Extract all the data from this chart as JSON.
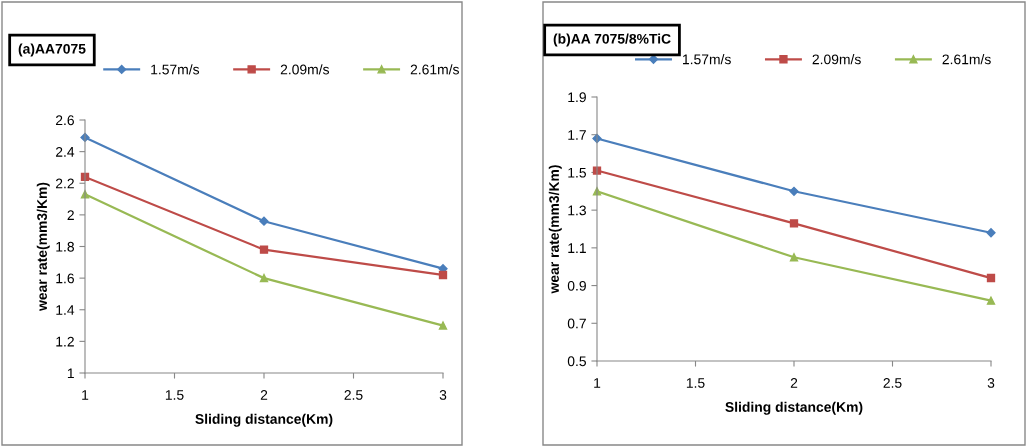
{
  "chart_data": [
    {
      "type": "line",
      "title": "(a)AA7075",
      "xlabel": "Sliding distance(Km)",
      "ylabel": "wear rate(mm3/Km)",
      "x": [
        1,
        2,
        3
      ],
      "series": [
        {
          "name": "1.57m/s",
          "color": "#4a7ebb",
          "marker": "diamond",
          "values": [
            2.49,
            1.96,
            1.66
          ]
        },
        {
          "name": "2.09m/s",
          "color": "#be4b48",
          "marker": "square",
          "values": [
            2.24,
            1.78,
            1.62
          ]
        },
        {
          "name": "2.61m/s",
          "color": "#98b954",
          "marker": "triangle",
          "values": [
            2.13,
            1.6,
            1.3
          ]
        }
      ],
      "xlim": [
        1,
        3
      ],
      "xticks": [
        1,
        1.5,
        2,
        2.5,
        3
      ],
      "ylim": [
        1,
        2.6
      ],
      "yticks": [
        1,
        1.2,
        1.4,
        1.6,
        1.8,
        2,
        2.2,
        2.4,
        2.6
      ],
      "grid": false,
      "legend": "top"
    },
    {
      "type": "line",
      "title": "(b)AA 7075/8%TiC",
      "xlabel": "Sliding distance(Km)",
      "ylabel": "wear rate(mm3/Km)",
      "x": [
        1,
        2,
        3
      ],
      "series": [
        {
          "name": "1.57m/s",
          "color": "#4a7ebb",
          "marker": "diamond",
          "values": [
            1.68,
            1.4,
            1.18
          ]
        },
        {
          "name": "2.09m/s",
          "color": "#be4b48",
          "marker": "square",
          "values": [
            1.51,
            1.23,
            0.94
          ]
        },
        {
          "name": "2.61m/s",
          "color": "#98b954",
          "marker": "triangle",
          "values": [
            1.4,
            1.05,
            0.82
          ]
        }
      ],
      "xlim": [
        1,
        3
      ],
      "xticks": [
        1,
        1.5,
        2,
        2.5,
        3
      ],
      "ylim": [
        0.5,
        1.9
      ],
      "yticks": [
        0.5,
        0.7,
        0.9,
        1.1,
        1.3,
        1.5,
        1.7,
        1.9
      ],
      "grid": false,
      "legend": "top"
    }
  ]
}
